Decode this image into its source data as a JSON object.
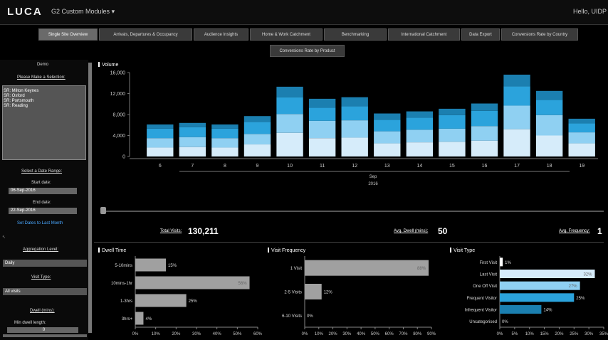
{
  "header": {
    "logo": "LUCA",
    "module_selector": "G2 Custom Modules",
    "greeting": "Hello, UIDP"
  },
  "tabs": [
    {
      "label": "Single Site Overview",
      "active": true
    },
    {
      "label": "Arrivals, Departures & Occupancy",
      "active": false
    },
    {
      "label": "Audience Insights",
      "active": false
    },
    {
      "label": "Home & Work Catchment",
      "active": false
    },
    {
      "label": "Benchmarking",
      "active": false
    },
    {
      "label": "International Catchment",
      "active": false
    },
    {
      "label": "Data Export",
      "active": false
    },
    {
      "label": "Conversions Rate by Country",
      "active": false
    },
    {
      "label": "Conversions Rate by Product",
      "active": false
    }
  ],
  "sidebar": {
    "demo": "Demo",
    "selection_title": "Please Make a Selection:",
    "sites": [
      "SR: Milton Keynes",
      "SR: Oxford",
      "SR: Portsmouth",
      "SR: Reading"
    ],
    "date_range_title": "Select a Date Range:",
    "start_label": "Start date:",
    "start_value": "06-Sep-2016",
    "end_label": "End date:",
    "end_value": "22-Sep-2016",
    "last_month_link": "Set Dates to Last Month",
    "aggregation_label": "Aggregation Level:",
    "aggregation_value": "Daily",
    "visit_type_label": "Visit Type:",
    "visit_type_value": "All visits",
    "dwell_label": "Dwell (mins):",
    "min_dwell_label": "Min dwell length:",
    "min_dwell_value": "0"
  },
  "stats": {
    "total_visits_label": "Total Visits:",
    "total_visits_value": "130,211",
    "avg_dwell_label": "Avg. Dwell (mins):",
    "avg_dwell_value": "50",
    "avg_freq_label": "Avg. Frequency:",
    "avg_freq_value": "1"
  },
  "colors": {
    "c1": "#d6ecfa",
    "c2": "#8fd0f2",
    "c3": "#2ba3dc",
    "c4": "#1b7fb0",
    "bar_gray": "#a0a0a0"
  },
  "chart_data": [
    {
      "type": "bar",
      "stacked": true,
      "title": "Volume",
      "x": [
        "6",
        "7",
        "8",
        "9",
        "10",
        "11",
        "12",
        "13",
        "14",
        "15",
        "16",
        "17",
        "18",
        "19"
      ],
      "xlabel_month": "Sep",
      "xlabel_year": "2016",
      "ylim": [
        0,
        16000
      ],
      "yticks": [
        "16,000",
        "12,000",
        "8,000",
        "4,000",
        "0"
      ],
      "ytick_values": [
        16000,
        12000,
        8000,
        4000,
        0
      ],
      "series": [
        {
          "values": [
            1700,
            1800,
            1700,
            2300,
            4500,
            3500,
            3600,
            2500,
            2700,
            2800,
            3000,
            5200,
            4000,
            2500
          ]
        },
        {
          "values": [
            1800,
            1900,
            1800,
            2000,
            3600,
            3300,
            3300,
            2300,
            2400,
            2500,
            2800,
            4500,
            3900,
            2100
          ]
        },
        {
          "values": [
            1800,
            1900,
            1800,
            2300,
            3200,
            2500,
            2700,
            2200,
            2300,
            2600,
            2900,
            3700,
            2900,
            1700
          ]
        },
        {
          "values": [
            800,
            800,
            800,
            1100,
            2000,
            1700,
            1700,
            1200,
            1200,
            1200,
            1400,
            2200,
            1700,
            900
          ]
        }
      ]
    },
    {
      "type": "bar",
      "orientation": "horizontal",
      "title": "Dwell Time",
      "categories": [
        "5-10mins",
        "10mins-1hr",
        "1-3hrs",
        "3hrs+"
      ],
      "values": [
        15,
        56,
        25,
        4
      ],
      "labels": [
        "15%",
        "56%",
        "25%",
        "4%"
      ],
      "xticks": [
        "0%",
        "10%",
        "20%",
        "30%",
        "40%",
        "50%",
        "60%"
      ],
      "xlim": [
        0,
        60
      ]
    },
    {
      "type": "bar",
      "orientation": "horizontal",
      "title": "Visit Frequency",
      "categories": [
        "1 Visit",
        "2-5 Visits",
        "6-10 Visits"
      ],
      "values": [
        88,
        12,
        0
      ],
      "labels": [
        "88%",
        "12%",
        "0%"
      ],
      "xticks": [
        "0%",
        "10%",
        "20%",
        "30%",
        "40%",
        "50%",
        "60%",
        "70%",
        "80%",
        "90%"
      ],
      "xlim": [
        0,
        90
      ]
    },
    {
      "type": "bar",
      "orientation": "horizontal",
      "title": "Visit Type",
      "categories": [
        "First Visit",
        "Last Visit",
        "One Off Visit",
        "Frequent Visitor",
        "Infrequent Visitor",
        "Uncategorised"
      ],
      "values": [
        1,
        32,
        27,
        25,
        14,
        0
      ],
      "labels": [
        "1%",
        "32%",
        "27%",
        "25%",
        "14%",
        "0%"
      ],
      "xticks": [
        "0%",
        "5%",
        "10%",
        "15%",
        "20%",
        "25%",
        "30%",
        "35%"
      ],
      "xlim": [
        0,
        35
      ]
    }
  ]
}
